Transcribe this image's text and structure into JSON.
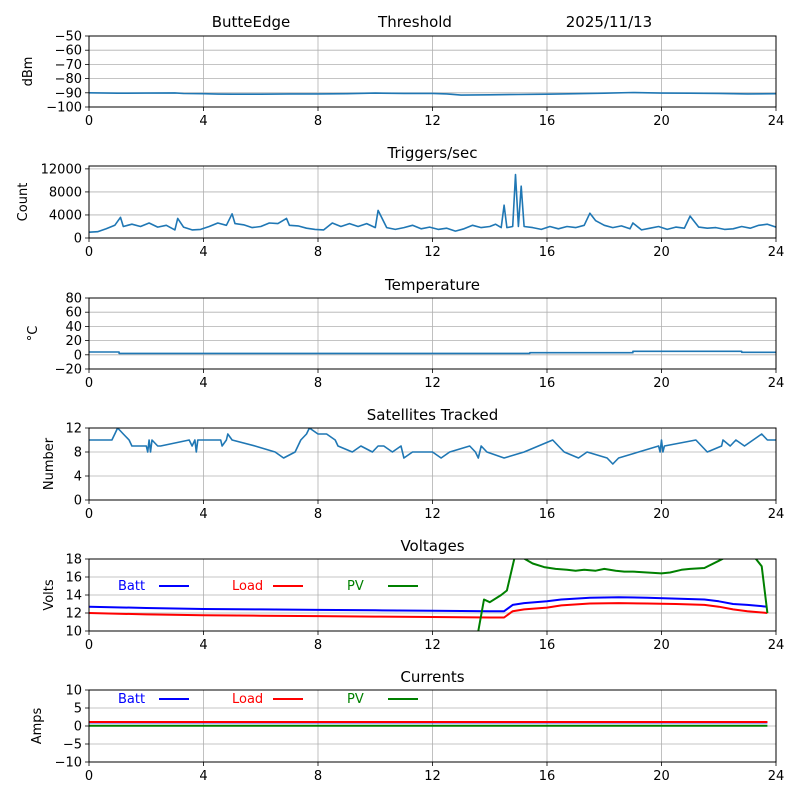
{
  "header": {
    "station": "ButteEdge",
    "mode": "Threshold",
    "date": "2025/11/13"
  },
  "chart_data": [
    {
      "id": "threshold",
      "type": "line",
      "title": "",
      "xlabel": "",
      "ylabel": "dBm",
      "xlim": [
        0,
        24
      ],
      "ylim": [
        -100,
        -50
      ],
      "xticks": [
        0,
        4,
        8,
        12,
        16,
        20,
        24
      ],
      "yticks": [
        -100,
        -90,
        -80,
        -70,
        -60,
        -50
      ],
      "ytick_labels": [
        "−100",
        "−90",
        "−80",
        "−70",
        "−60",
        "−50"
      ],
      "grid": true,
      "series": [
        {
          "name": "Threshold",
          "color": "#1f77b4",
          "x": [
            0,
            1,
            2,
            3,
            3.3,
            4,
            4.5,
            5,
            6,
            7,
            8,
            9,
            10,
            11,
            12,
            12.5,
            13,
            14,
            15,
            16,
            17,
            18,
            19,
            20,
            21,
            22,
            23,
            24
          ],
          "y": [
            -90,
            -90.3,
            -90.2,
            -90.1,
            -90.5,
            -90.6,
            -90.9,
            -91,
            -91,
            -90.8,
            -90.8,
            -90.6,
            -90.2,
            -90.4,
            -90.4,
            -90.8,
            -91.6,
            -91.4,
            -91.2,
            -91,
            -90.6,
            -90.3,
            -89.8,
            -90.2,
            -90.3,
            -90.4,
            -90.8,
            -90.6
          ]
        }
      ]
    },
    {
      "id": "triggers",
      "type": "line",
      "title": "Triggers/sec",
      "xlabel": "",
      "ylabel": "Count",
      "xlim": [
        0,
        24
      ],
      "ylim": [
        0,
        12500
      ],
      "xticks": [
        0,
        4,
        8,
        12,
        16,
        20,
        24
      ],
      "yticks": [
        0,
        4000,
        8000,
        12000
      ],
      "ytick_labels": [
        "0",
        "4000",
        "8000",
        "12000"
      ],
      "grid": true,
      "series": [
        {
          "name": "Triggers",
          "color": "#1f77b4",
          "x": [
            0,
            0.3,
            0.6,
            0.9,
            1.1,
            1.2,
            1.5,
            1.8,
            2.1,
            2.4,
            2.7,
            3.0,
            3.1,
            3.3,
            3.6,
            3.9,
            4.2,
            4.5,
            4.8,
            5.0,
            5.1,
            5.4,
            5.7,
            6.0,
            6.3,
            6.6,
            6.9,
            7.0,
            7.3,
            7.6,
            7.9,
            8.2,
            8.5,
            8.8,
            9.1,
            9.4,
            9.7,
            10.0,
            10.1,
            10.4,
            10.7,
            11.0,
            11.3,
            11.6,
            11.9,
            12.2,
            12.5,
            12.8,
            13.1,
            13.4,
            13.7,
            14.0,
            14.2,
            14.4,
            14.5,
            14.6,
            14.8,
            14.9,
            15.0,
            15.1,
            15.2,
            15.5,
            15.8,
            16.1,
            16.4,
            16.7,
            17.0,
            17.3,
            17.5,
            17.7,
            18.0,
            18.3,
            18.6,
            18.9,
            19.0,
            19.3,
            19.6,
            19.9,
            20.2,
            20.5,
            20.8,
            21.0,
            21.3,
            21.6,
            21.9,
            22.2,
            22.5,
            22.8,
            23.1,
            23.4,
            23.7,
            24.0
          ],
          "y": [
            1000,
            1100,
            1600,
            2200,
            3600,
            2000,
            2400,
            2000,
            2600,
            1900,
            2200,
            1400,
            3400,
            1900,
            1400,
            1500,
            2000,
            2600,
            2200,
            4200,
            2500,
            2300,
            1800,
            2000,
            2600,
            2500,
            3400,
            2200,
            2100,
            1700,
            1500,
            1400,
            2600,
            2000,
            2500,
            2000,
            2500,
            1800,
            4800,
            1800,
            1500,
            1800,
            2200,
            1600,
            1900,
            1500,
            1700,
            1200,
            1600,
            2200,
            1800,
            2000,
            2400,
            1800,
            5700,
            1800,
            2000,
            11000,
            2000,
            9000,
            2000,
            1800,
            1500,
            2000,
            1600,
            2000,
            1800,
            2200,
            4300,
            3000,
            2200,
            1800,
            2100,
            1600,
            2600,
            1400,
            1700,
            2000,
            1500,
            1900,
            1700,
            3800,
            1900,
            1700,
            1800,
            1500,
            1600,
            2000,
            1700,
            2200,
            2400,
            1900
          ]
        }
      ]
    },
    {
      "id": "temperature",
      "type": "line",
      "title": "Temperature",
      "xlabel": "",
      "ylabel": "°C",
      "xlim": [
        0,
        24
      ],
      "ylim": [
        -20,
        80
      ],
      "xticks": [
        0,
        4,
        8,
        12,
        16,
        20,
        24
      ],
      "yticks": [
        -20,
        0,
        20,
        40,
        60,
        80
      ],
      "ytick_labels": [
        "−20",
        "0",
        "20",
        "40",
        "60",
        "80"
      ],
      "grid": true,
      "series": [
        {
          "name": "Temperature",
          "color": "#1f77b4",
          "x": [
            0,
            1.05,
            1.05,
            15.4,
            15.4,
            19.0,
            19.0,
            22.8,
            22.8,
            24
          ],
          "y": [
            4,
            4,
            2,
            2,
            3,
            3,
            5,
            5,
            3.5,
            3.5
          ]
        }
      ]
    },
    {
      "id": "satellites",
      "type": "line",
      "title": "Satellites Tracked",
      "xlabel": "",
      "ylabel": "Number",
      "xlim": [
        0,
        24
      ],
      "ylim": [
        0,
        12
      ],
      "xticks": [
        0,
        4,
        8,
        12,
        16,
        20,
        24
      ],
      "yticks": [
        0,
        4,
        8,
        12
      ],
      "ytick_labels": [
        "0",
        "4",
        "8",
        "12"
      ],
      "grid": true,
      "series": [
        {
          "name": "Satellites",
          "color": "#1f77b4",
          "x": [
            0,
            0.8,
            0.9,
            1.0,
            1.1,
            1.2,
            1.4,
            1.5,
            2.0,
            2.05,
            2.1,
            2.15,
            2.2,
            2.4,
            2.5,
            3.5,
            3.6,
            3.7,
            3.75,
            3.8,
            4.6,
            4.65,
            4.8,
            4.85,
            5.0,
            5.8,
            6.5,
            6.8,
            7.2,
            7.4,
            7.6,
            7.7,
            8.0,
            8.3,
            8.6,
            8.7,
            9.2,
            9.5,
            9.9,
            10.1,
            10.3,
            10.6,
            10.9,
            11.0,
            11.3,
            12.0,
            12.3,
            12.6,
            13.3,
            13.5,
            13.6,
            13.7,
            13.9,
            14.5,
            15.2,
            15.7,
            16.2,
            16.4,
            16.6,
            17.1,
            17.4,
            18.1,
            18.3,
            18.5,
            19.2,
            19.9,
            19.95,
            20.0,
            20.05,
            20.1,
            21.2,
            21.6,
            22.1,
            22.15,
            22.4,
            22.6,
            22.9,
            23.2,
            23.5,
            23.7,
            24.0
          ],
          "y": [
            10,
            10,
            11,
            12,
            11.5,
            11,
            10,
            9,
            9,
            8,
            10,
            8,
            10,
            9,
            9,
            10,
            9,
            10,
            8,
            10,
            10,
            9,
            10,
            11,
            10,
            9,
            8,
            7,
            8,
            10,
            11,
            12,
            11,
            11,
            10,
            9,
            8,
            9,
            8,
            9,
            9,
            8,
            9,
            7,
            8,
            8,
            7,
            8,
            9,
            8,
            7,
            9,
            8,
            7,
            8,
            9,
            10,
            9,
            8,
            7,
            8,
            7,
            6,
            7,
            8,
            9,
            8,
            10,
            8,
            9,
            10,
            8,
            9,
            10,
            9,
            10,
            9,
            10,
            11,
            10,
            10
          ]
        }
      ]
    },
    {
      "id": "voltages",
      "type": "line",
      "title": "Voltages",
      "xlabel": "",
      "ylabel": "Volts",
      "xlim": [
        0,
        24
      ],
      "ylim": [
        10,
        18
      ],
      "xticks": [
        0,
        4,
        8,
        12,
        16,
        20,
        24
      ],
      "yticks": [
        10,
        12,
        14,
        16,
        18
      ],
      "ytick_labels": [
        "10",
        "12",
        "14",
        "16",
        "18"
      ],
      "grid": true,
      "legend": "top-left, inline horizontal",
      "series": [
        {
          "name": "Batt",
          "color": "#0000ff",
          "x": [
            0,
            2,
            4,
            6,
            8,
            10,
            12,
            14,
            14.5,
            14.8,
            15.2,
            16,
            16.5,
            17.5,
            18.5,
            19.5,
            20.5,
            21.5,
            22,
            22.5,
            23,
            23.7
          ],
          "y": [
            12.7,
            12.55,
            12.45,
            12.4,
            12.35,
            12.3,
            12.25,
            12.2,
            12.2,
            12.9,
            13.1,
            13.3,
            13.5,
            13.7,
            13.75,
            13.7,
            13.6,
            13.5,
            13.3,
            13.0,
            12.9,
            12.7
          ]
        },
        {
          "name": "Load",
          "color": "#ff0000",
          "x": [
            0,
            2,
            4,
            6,
            8,
            10,
            12,
            14,
            14.5,
            14.8,
            15.2,
            16,
            16.5,
            17.5,
            18.5,
            19.5,
            20.5,
            21.5,
            22,
            22.5,
            23,
            23.7
          ],
          "y": [
            12.0,
            11.85,
            11.75,
            11.7,
            11.65,
            11.6,
            11.55,
            11.5,
            11.5,
            12.2,
            12.4,
            12.6,
            12.85,
            13.05,
            13.1,
            13.05,
            13.0,
            12.9,
            12.7,
            12.4,
            12.2,
            12.0
          ]
        },
        {
          "name": "PV",
          "color": "#008000",
          "x": [
            13.6,
            13.8,
            14.0,
            14.4,
            14.6,
            14.9,
            15.5,
            15.9,
            16.3,
            16.7,
            17.0,
            17.3,
            17.7,
            18.0,
            18.4,
            18.7,
            19.0,
            19.5,
            20.0,
            20.3,
            20.7,
            21.0,
            21.5,
            22.0,
            22.5,
            23.0,
            23.3,
            23.5,
            23.7
          ],
          "y": [
            10,
            13.5,
            13.2,
            14.0,
            14.5,
            18.6,
            17.5,
            17.1,
            16.9,
            16.8,
            16.7,
            16.8,
            16.7,
            16.9,
            16.7,
            16.6,
            16.6,
            16.5,
            16.4,
            16.5,
            16.8,
            16.9,
            17.0,
            17.8,
            18.6,
            18.5,
            18.0,
            17.2,
            12.0
          ]
        }
      ]
    },
    {
      "id": "currents",
      "type": "line",
      "title": "Currents",
      "xlabel": "",
      "ylabel": "Amps",
      "xlim": [
        0,
        24
      ],
      "ylim": [
        -10,
        10
      ],
      "xticks": [
        0,
        4,
        8,
        12,
        16,
        20,
        24
      ],
      "yticks": [
        -10,
        -5,
        0,
        5,
        10
      ],
      "ytick_labels": [
        "−10",
        "−5",
        "0",
        "5",
        "10"
      ],
      "grid": true,
      "legend": "top-left, inline horizontal",
      "series": [
        {
          "name": "Batt",
          "color": "#0000ff",
          "x": [
            0,
            23.7
          ],
          "y": [
            1.0,
            1.0
          ]
        },
        {
          "name": "Load",
          "color": "#ff0000",
          "x": [
            0,
            23.7
          ],
          "y": [
            1.1,
            1.1
          ]
        },
        {
          "name": "PV",
          "color": "#008000",
          "x": [
            0,
            23.7
          ],
          "y": [
            0.05,
            0.05
          ]
        }
      ]
    }
  ]
}
